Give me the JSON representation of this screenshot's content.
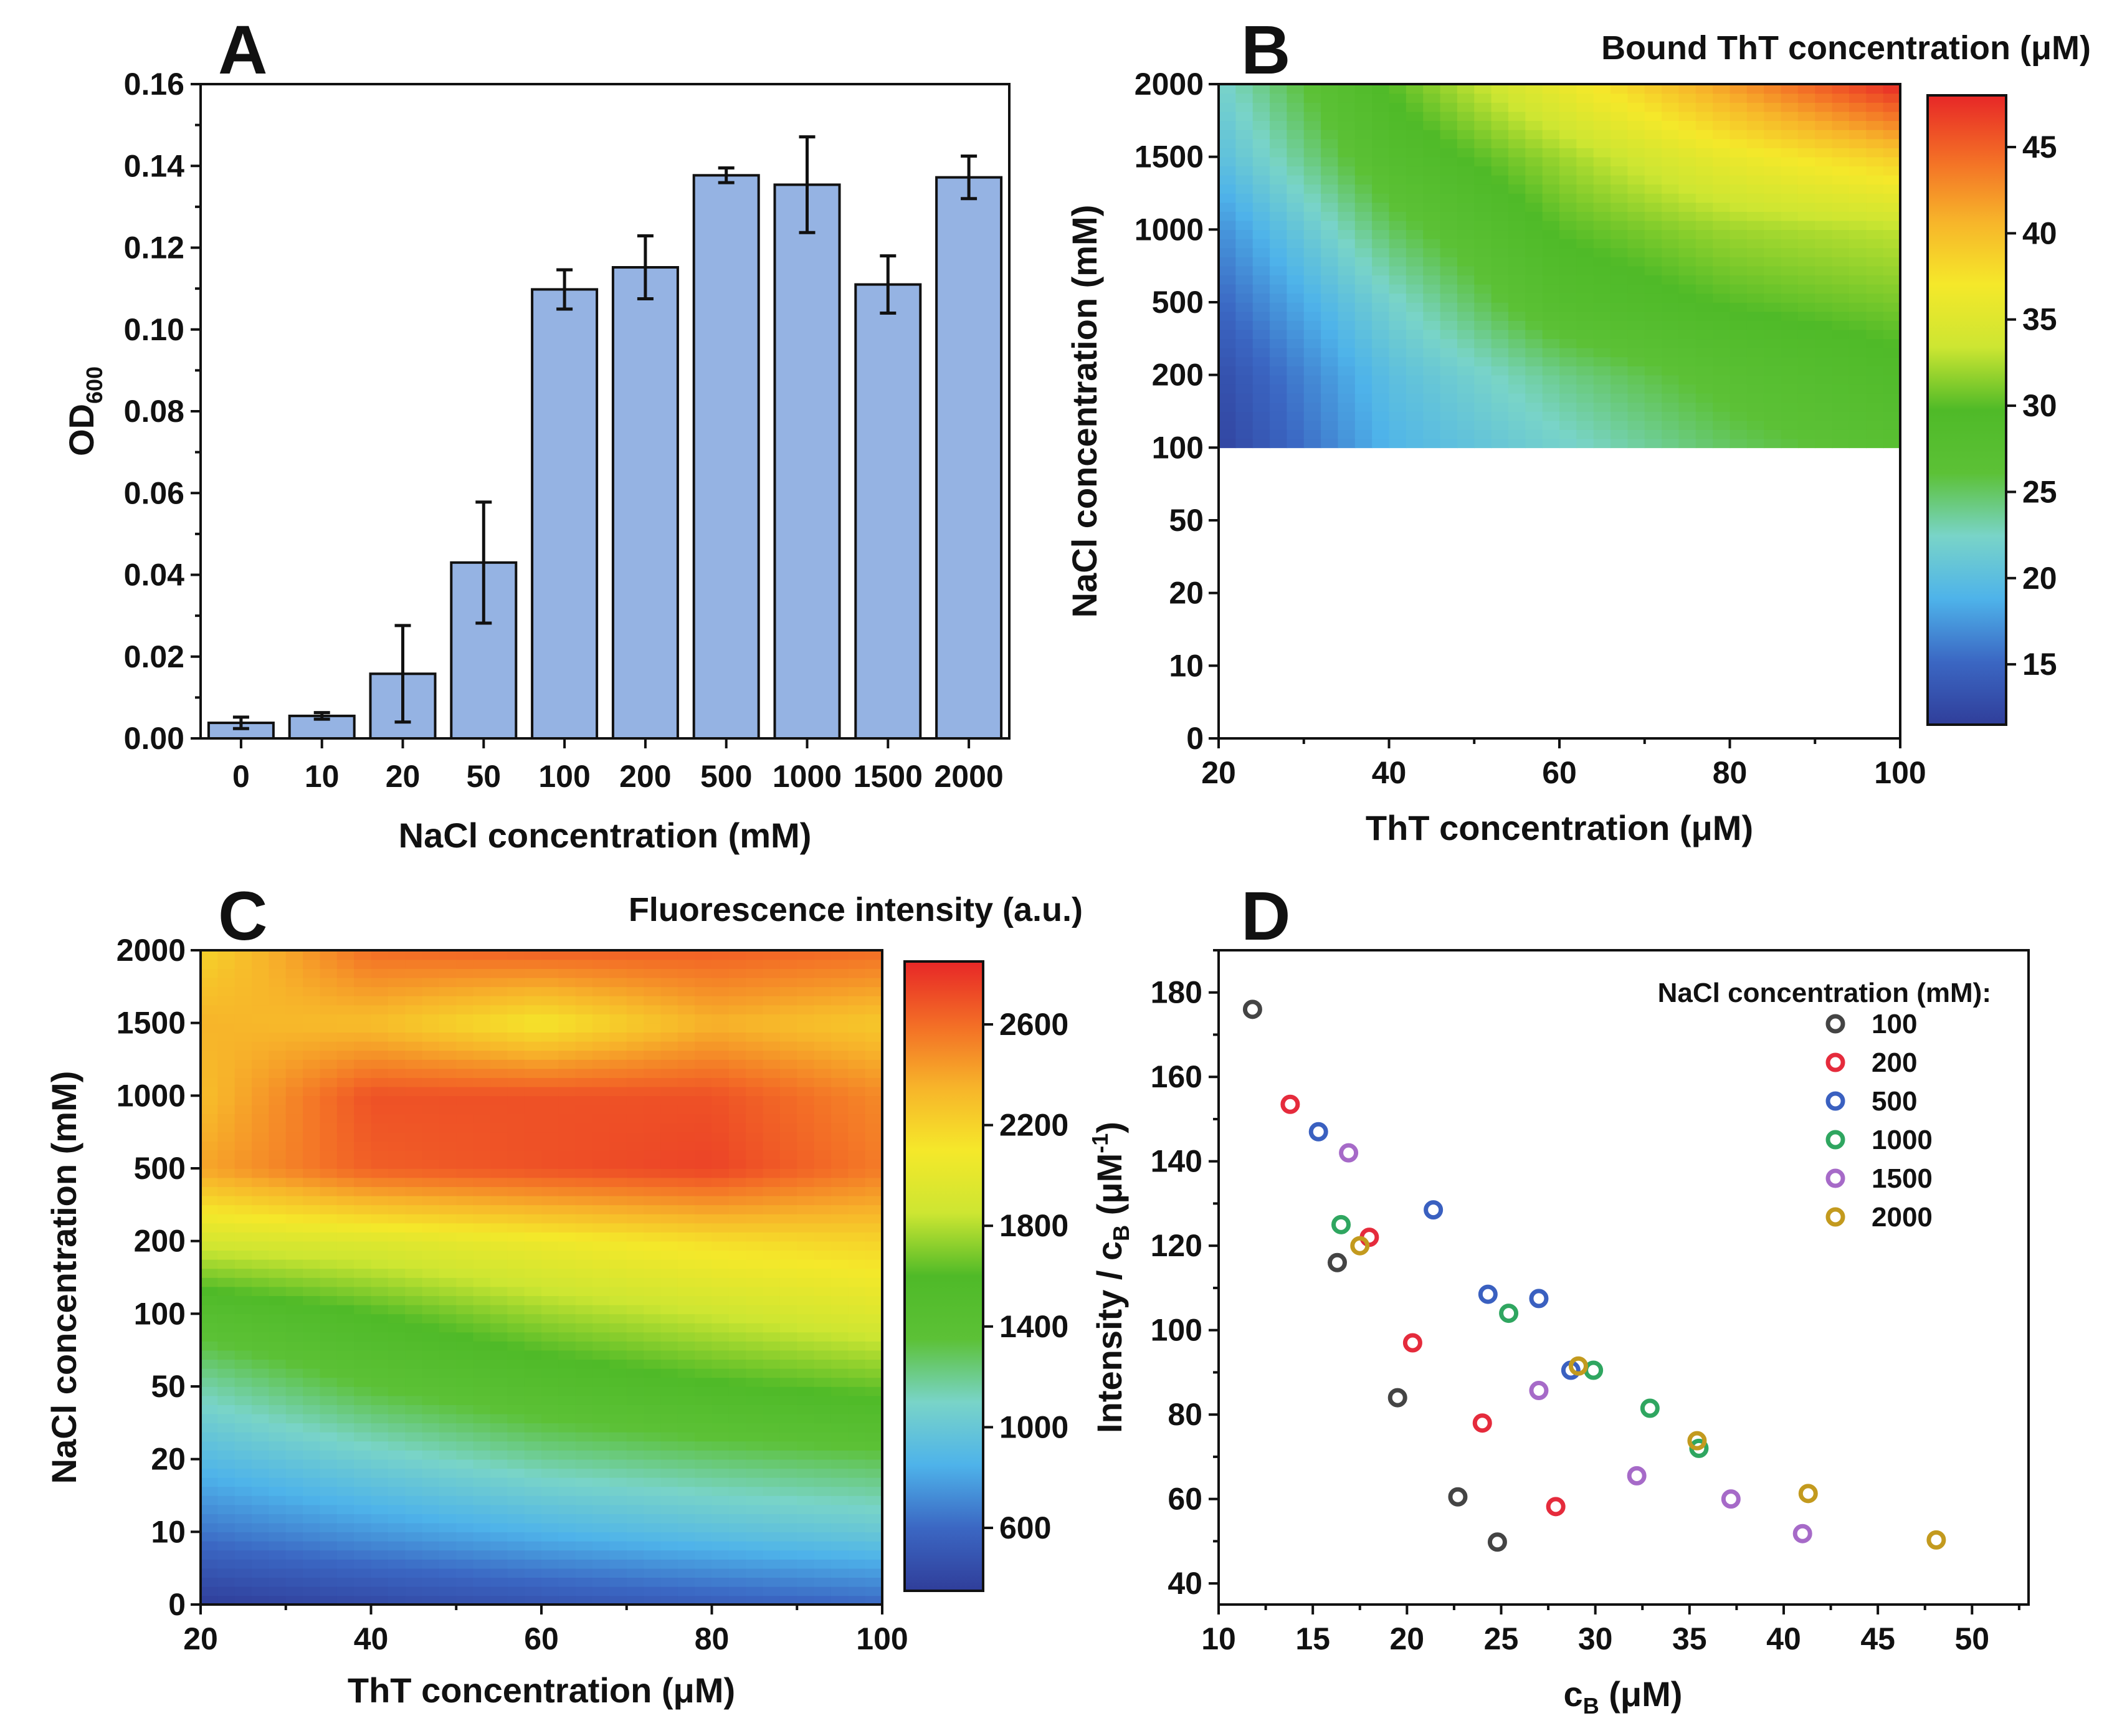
{
  "colors": {
    "bar_fill": "#95b3e3",
    "axis": "#111111",
    "jet_stops": [
      "#303e9a",
      "#3b67c3",
      "#4eb3ea",
      "#79d4c8",
      "#5cc136",
      "#4fba28",
      "#cde632",
      "#f5e82a",
      "#f7b42a",
      "#f36d26",
      "#e72727"
    ]
  },
  "chart_data": [
    {
      "panel": "A",
      "type": "bar",
      "title": "",
      "xlabel": "NaCl concentration (mM)",
      "ylabel_main": "OD",
      "ylabel_sub": "600",
      "categories": [
        "0",
        "10",
        "20",
        "50",
        "100",
        "200",
        "500",
        "1000",
        "1500",
        "2000"
      ],
      "values": [
        0.0038,
        0.0055,
        0.0158,
        0.043,
        0.1098,
        0.1152,
        0.1377,
        0.1354,
        0.111,
        0.1372
      ],
      "errors": [
        0.0014,
        0.0008,
        0.0118,
        0.0148,
        0.0048,
        0.0077,
        0.0018,
        0.0117,
        0.007,
        0.0052
      ],
      "ylim": [
        0,
        0.16
      ],
      "yticks": [
        "0.00",
        "0.02",
        "0.04",
        "0.06",
        "0.08",
        "0.10",
        "0.12",
        "0.14",
        "0.16"
      ]
    },
    {
      "panel": "B",
      "type": "heatmap",
      "title": "Bound ThT concentration (μM)",
      "xlabel": "ThT concentration (μM)",
      "ylabel": "NaCl concentration (mM)",
      "x_ticks": [
        "20",
        "40",
        "60",
        "80",
        "100"
      ],
      "x_range": [
        20,
        100
      ],
      "y_ticks": [
        "0",
        "10",
        "20",
        "50",
        "100",
        "200",
        "500",
        "1000",
        "1500",
        "2000"
      ],
      "x": [
        20,
        40,
        60,
        80,
        100
      ],
      "y_rows_index": [
        4,
        5,
        6,
        7,
        8,
        9
      ],
      "y_rows_label": [
        "100",
        "200",
        "500",
        "1000",
        "1500",
        "2000"
      ],
      "z": [
        [
          12,
          19,
          22,
          25,
          27
        ],
        [
          13,
          20,
          24,
          27,
          29
        ],
        [
          15,
          22,
          28,
          30,
          31
        ],
        [
          17,
          25,
          30,
          32,
          33
        ],
        [
          20,
          28,
          32,
          36,
          39
        ],
        [
          22,
          30,
          36,
          42,
          48
        ]
      ],
      "colorbar_range": [
        11.5,
        48
      ],
      "colorbar_ticks": [
        "15",
        "20",
        "25",
        "30",
        "35",
        "40",
        "45"
      ],
      "colorbar_tick_values": [
        15,
        20,
        25,
        30,
        35,
        40,
        45
      ]
    },
    {
      "panel": "C",
      "type": "heatmap",
      "title": "Fluorescence intensity (a.u.)",
      "xlabel": "ThT concentration (μM)",
      "ylabel": "NaCl concentration (mM)",
      "x_ticks": [
        "20",
        "40",
        "60",
        "80",
        "100"
      ],
      "x_range": [
        20,
        100
      ],
      "y_ticks": [
        "0",
        "10",
        "20",
        "50",
        "100",
        "200",
        "500",
        "1000",
        "1500",
        "2000"
      ],
      "x": [
        20,
        40,
        60,
        80,
        100
      ],
      "y_rows_index": [
        0,
        1,
        2,
        3,
        4,
        5,
        6,
        7,
        8,
        9
      ],
      "z": [
        [
          350,
          420,
          480,
          540,
          600
        ],
        [
          650,
          760,
          860,
          940,
          1000
        ],
        [
          900,
          1050,
          1180,
          1250,
          1300
        ],
        [
          1150,
          1350,
          1480,
          1580,
          1650
        ],
        [
          1450,
          1600,
          1750,
          1850,
          1950
        ],
        [
          1900,
          1950,
          2050,
          2150,
          2200
        ],
        [
          2400,
          2650,
          2700,
          2750,
          2550
        ],
        [
          2300,
          2700,
          2700,
          2700,
          2500
        ],
        [
          2350,
          2300,
          2100,
          2350,
          2250
        ],
        [
          2200,
          2600,
          2650,
          2650,
          2600
        ]
      ],
      "colorbar_range": [
        350,
        2850
      ],
      "colorbar_ticks": [
        "600",
        "1000",
        "1400",
        "1800",
        "2200",
        "2600"
      ],
      "colorbar_tick_values": [
        600,
        1000,
        1400,
        1800,
        2200,
        2600
      ]
    },
    {
      "panel": "D",
      "type": "scatter",
      "title": "",
      "xlabel": "c",
      "xlabel_sub": "B",
      "xlabel_tail": " (μM)",
      "ylabel_a": "Intensity / c",
      "ylabel_sub": "B",
      "ylabel_b": " (μM",
      "ylabel_sup": "-1",
      "ylabel_c": ")",
      "xlim": [
        10,
        53
      ],
      "ylim": [
        35,
        190
      ],
      "x_ticks": [
        "10",
        "15",
        "20",
        "25",
        "30",
        "35",
        "40",
        "45",
        "50"
      ],
      "x_tick_values": [
        10,
        15,
        20,
        25,
        30,
        35,
        40,
        45,
        50
      ],
      "y_ticks": [
        "40",
        "60",
        "80",
        "100",
        "120",
        "140",
        "160",
        "180"
      ],
      "y_tick_values": [
        40,
        60,
        80,
        100,
        120,
        140,
        160,
        180
      ],
      "legend_title": "NaCl concentration (mM):",
      "series": [
        {
          "name": "100",
          "color": "#444444",
          "points": [
            [
              11.8,
              176
            ],
            [
              16.3,
              116
            ],
            [
              19.5,
              84
            ],
            [
              22.7,
              60.5
            ],
            [
              24.8,
              49.8
            ]
          ]
        },
        {
          "name": "200",
          "color": "#e52b3c",
          "points": [
            [
              13.8,
              153.5
            ],
            [
              18.0,
              122
            ],
            [
              20.3,
              97
            ],
            [
              24.0,
              78
            ],
            [
              27.9,
              58.2
            ]
          ]
        },
        {
          "name": "500",
          "color": "#3a60c0",
          "points": [
            [
              15.3,
              147
            ],
            [
              21.4,
              128.5
            ],
            [
              24.3,
              108.5
            ],
            [
              27.0,
              107.5
            ],
            [
              28.7,
              90.5
            ]
          ]
        },
        {
          "name": "1000",
          "color": "#2fa660",
          "points": [
            [
              16.5,
              125
            ],
            [
              25.4,
              104
            ],
            [
              29.9,
              90.5
            ],
            [
              32.9,
              81.5
            ],
            [
              35.5,
              72
            ]
          ]
        },
        {
          "name": "1500",
          "color": "#a66ac8",
          "points": [
            [
              16.9,
              142
            ],
            [
              27.0,
              85.7
            ],
            [
              32.2,
              65.5
            ],
            [
              37.2,
              60
            ],
            [
              41.0,
              51.8
            ]
          ]
        },
        {
          "name": "2000",
          "color": "#c39a1e",
          "points": [
            [
              17.5,
              120
            ],
            [
              29.1,
              91.5
            ],
            [
              35.4,
              73.8
            ],
            [
              41.3,
              61.3
            ],
            [
              48.1,
              50.3
            ]
          ]
        }
      ]
    }
  ]
}
